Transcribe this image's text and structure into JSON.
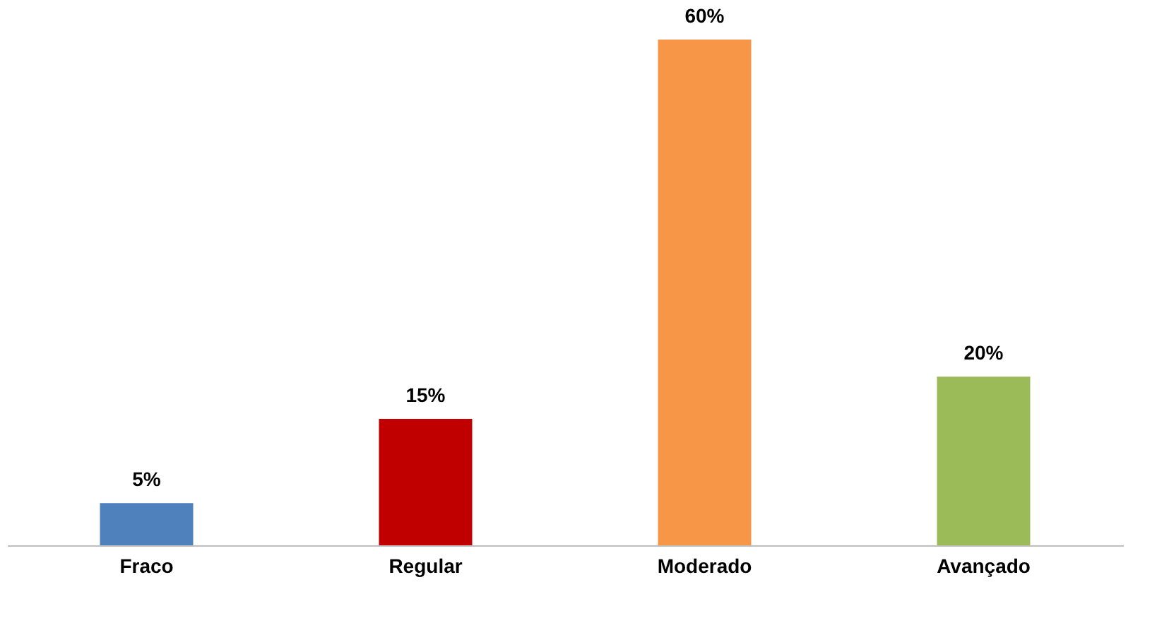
{
  "chart_data": {
    "type": "bar",
    "categories": [
      "Fraco",
      "Regular",
      "Moderado",
      "Avançado"
    ],
    "values": [
      5,
      15,
      60,
      20
    ],
    "colors": [
      "#4f81bd",
      "#c00000",
      "#f79646",
      "#9bbb59"
    ],
    "data_labels": true,
    "value_labels": [
      "5%",
      "15%",
      "60%",
      "20%"
    ],
    "grid": false
  }
}
